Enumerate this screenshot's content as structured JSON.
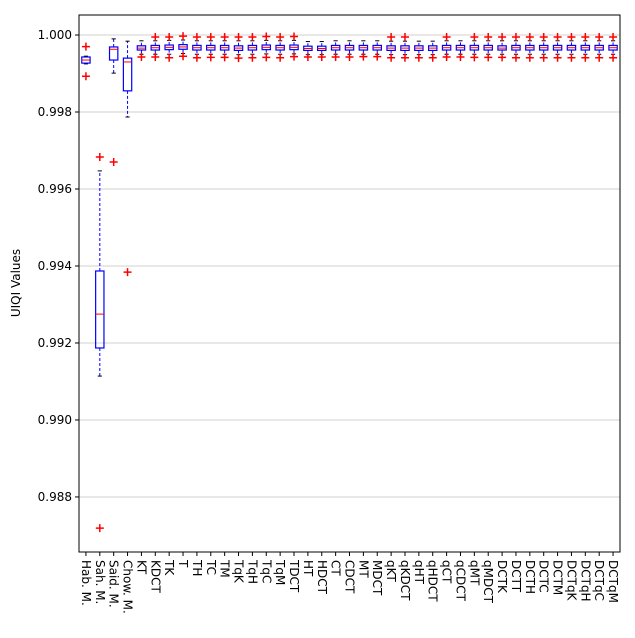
{
  "chart_data": {
    "type": "box",
    "ylabel": "UIQI Values",
    "categories": [
      "Hab. M.",
      "Sah. M.",
      "Said. M.",
      "Chow. M.",
      "KT",
      "KDCT",
      "TK",
      "T",
      "TH",
      "TC",
      "TM",
      "TqK",
      "TqH",
      "TqC",
      "TqM",
      "TDCT",
      "HT",
      "HDCT",
      "CT",
      "CDCT",
      "MT",
      "MDCT",
      "qKT",
      "qKDCT",
      "qHT",
      "qHDCT",
      "qCT",
      "qCDCT",
      "qMT",
      "qMDCT",
      "DCTK",
      "DCTT",
      "DCTH",
      "DCTC",
      "DCTM",
      "DCTqK",
      "DCTqH",
      "DCTqC",
      "DCTqM"
    ],
    "boxes": [
      {
        "whislo": 0.99925,
        "q1": 0.99927,
        "med": 0.99935,
        "q3": 0.99943,
        "whishi": 0.99945,
        "fliers": [
          0.9997,
          0.99893
        ]
      },
      {
        "whislo": 0.99114,
        "q1": 0.99187,
        "med": 0.99275,
        "q3": 0.99387,
        "whishi": 0.99647,
        "fliers": [
          0.99683,
          0.98719
        ]
      },
      {
        "whislo": 0.99901,
        "q1": 0.99935,
        "med": 0.99963,
        "q3": 0.99969,
        "whishi": 0.9999,
        "fliers": [
          0.9967
        ]
      },
      {
        "whislo": 0.99787,
        "q1": 0.99855,
        "med": 0.9993,
        "q3": 0.9994,
        "whishi": 0.99984,
        "fliers": [
          0.99384
        ]
      },
      {
        "whislo": 0.9995,
        "q1": 0.99961,
        "med": 0.99966,
        "q3": 0.99972,
        "whishi": 0.99985,
        "fliers": [
          0.99943
        ]
      },
      {
        "whislo": 0.9995,
        "q1": 0.99961,
        "med": 0.99967,
        "q3": 0.99973,
        "whishi": 0.99985,
        "fliers": [
          0.99995,
          0.99943
        ]
      },
      {
        "whislo": 0.9995,
        "q1": 0.99962,
        "med": 0.99968,
        "q3": 0.99974,
        "whishi": 0.99986,
        "fliers": [
          0.99995,
          0.99941
        ]
      },
      {
        "whislo": 0.99952,
        "q1": 0.99963,
        "med": 0.99969,
        "q3": 0.99975,
        "whishi": 0.99987,
        "fliers": [
          0.99997,
          0.99945
        ]
      },
      {
        "whislo": 0.9995,
        "q1": 0.99961,
        "med": 0.99967,
        "q3": 0.99973,
        "whishi": 0.99985,
        "fliers": [
          0.99995,
          0.99941
        ]
      },
      {
        "whislo": 0.9995,
        "q1": 0.99961,
        "med": 0.99967,
        "q3": 0.99973,
        "whishi": 0.99985,
        "fliers": [
          0.99995,
          0.99942
        ]
      },
      {
        "whislo": 0.9995,
        "q1": 0.99961,
        "med": 0.99967,
        "q3": 0.99973,
        "whishi": 0.99985,
        "fliers": [
          0.99995,
          0.99942
        ]
      },
      {
        "whislo": 0.99949,
        "q1": 0.9996,
        "med": 0.99966,
        "q3": 0.99972,
        "whishi": 0.99985,
        "fliers": [
          0.99995,
          0.9994
        ]
      },
      {
        "whislo": 0.9995,
        "q1": 0.99961,
        "med": 0.99967,
        "q3": 0.99973,
        "whishi": 0.99985,
        "fliers": [
          0.99995,
          0.99941
        ]
      },
      {
        "whislo": 0.99951,
        "q1": 0.99962,
        "med": 0.99968,
        "q3": 0.99974,
        "whishi": 0.99986,
        "fliers": [
          0.99996,
          0.99942
        ]
      },
      {
        "whislo": 0.9995,
        "q1": 0.99961,
        "med": 0.99967,
        "q3": 0.99973,
        "whishi": 0.99985,
        "fliers": [
          0.99995,
          0.99941
        ]
      },
      {
        "whislo": 0.99951,
        "q1": 0.99962,
        "med": 0.99968,
        "q3": 0.99974,
        "whishi": 0.99986,
        "fliers": [
          0.99996,
          0.99944
        ]
      },
      {
        "whislo": 0.99949,
        "q1": 0.9996,
        "med": 0.99965,
        "q3": 0.99971,
        "whishi": 0.99983,
        "fliers": [
          0.99943
        ]
      },
      {
        "whislo": 0.99949,
        "q1": 0.9996,
        "med": 0.99965,
        "q3": 0.99971,
        "whishi": 0.99983,
        "fliers": [
          0.99943
        ]
      },
      {
        "whislo": 0.9995,
        "q1": 0.99961,
        "med": 0.99967,
        "q3": 0.99973,
        "whishi": 0.99985,
        "fliers": [
          0.99943
        ]
      },
      {
        "whislo": 0.9995,
        "q1": 0.99961,
        "med": 0.99967,
        "q3": 0.99973,
        "whishi": 0.99985,
        "fliers": [
          0.99943
        ]
      },
      {
        "whislo": 0.9995,
        "q1": 0.99961,
        "med": 0.99967,
        "q3": 0.99973,
        "whishi": 0.99985,
        "fliers": [
          0.99944
        ]
      },
      {
        "whislo": 0.9995,
        "q1": 0.99961,
        "med": 0.99967,
        "q3": 0.99973,
        "whishi": 0.99985,
        "fliers": [
          0.99944
        ]
      },
      {
        "whislo": 0.99949,
        "q1": 0.9996,
        "med": 0.99966,
        "q3": 0.99972,
        "whishi": 0.99984,
        "fliers": [
          0.99995,
          0.99941
        ]
      },
      {
        "whislo": 0.99949,
        "q1": 0.9996,
        "med": 0.99966,
        "q3": 0.99972,
        "whishi": 0.99984,
        "fliers": [
          0.99995,
          0.99941
        ]
      },
      {
        "whislo": 0.99949,
        "q1": 0.9996,
        "med": 0.99966,
        "q3": 0.99972,
        "whishi": 0.99984,
        "fliers": [
          0.99941
        ]
      },
      {
        "whislo": 0.99949,
        "q1": 0.9996,
        "med": 0.99966,
        "q3": 0.99972,
        "whishi": 0.99984,
        "fliers": [
          0.99941
        ]
      },
      {
        "whislo": 0.9995,
        "q1": 0.99961,
        "med": 0.99967,
        "q3": 0.99973,
        "whishi": 0.99985,
        "fliers": [
          0.99995,
          0.99943
        ]
      },
      {
        "whislo": 0.9995,
        "q1": 0.99961,
        "med": 0.99967,
        "q3": 0.99973,
        "whishi": 0.99985,
        "fliers": [
          0.99943
        ]
      },
      {
        "whislo": 0.9995,
        "q1": 0.99961,
        "med": 0.99967,
        "q3": 0.99973,
        "whishi": 0.99985,
        "fliers": [
          0.99995,
          0.99942
        ]
      },
      {
        "whislo": 0.9995,
        "q1": 0.99961,
        "med": 0.99967,
        "q3": 0.99973,
        "whishi": 0.99985,
        "fliers": [
          0.99995,
          0.99942
        ]
      },
      {
        "whislo": 0.9995,
        "q1": 0.99961,
        "med": 0.99966,
        "q3": 0.99972,
        "whishi": 0.99985,
        "fliers": [
          0.99995,
          0.99942
        ]
      },
      {
        "whislo": 0.9995,
        "q1": 0.99961,
        "med": 0.99967,
        "q3": 0.99973,
        "whishi": 0.99985,
        "fliers": [
          0.99995,
          0.99941
        ]
      },
      {
        "whislo": 0.9995,
        "q1": 0.99961,
        "med": 0.99967,
        "q3": 0.99973,
        "whishi": 0.99985,
        "fliers": [
          0.99995,
          0.99941
        ]
      },
      {
        "whislo": 0.9995,
        "q1": 0.99961,
        "med": 0.99967,
        "q3": 0.99973,
        "whishi": 0.99985,
        "fliers": [
          0.99995,
          0.99941
        ]
      },
      {
        "whislo": 0.9995,
        "q1": 0.99961,
        "med": 0.99967,
        "q3": 0.99973,
        "whishi": 0.99985,
        "fliers": [
          0.99995,
          0.99941
        ]
      },
      {
        "whislo": 0.9995,
        "q1": 0.99961,
        "med": 0.99967,
        "q3": 0.99973,
        "whishi": 0.99985,
        "fliers": [
          0.99995,
          0.99941
        ]
      },
      {
        "whislo": 0.9995,
        "q1": 0.99961,
        "med": 0.99967,
        "q3": 0.99973,
        "whishi": 0.99985,
        "fliers": [
          0.99995,
          0.99941
        ]
      },
      {
        "whislo": 0.9995,
        "q1": 0.99961,
        "med": 0.99967,
        "q3": 0.99973,
        "whishi": 0.99985,
        "fliers": [
          0.99995,
          0.99941
        ]
      },
      {
        "whislo": 0.9995,
        "q1": 0.99961,
        "med": 0.99967,
        "q3": 0.99973,
        "whishi": 0.99985,
        "fliers": [
          0.99995,
          0.99941
        ]
      }
    ],
    "box_color": "#0000ff",
    "median_color": "#ff0000",
    "flier_color": "#ff0000",
    "ylim": [
      0.98657,
      1.00052
    ],
    "yticks": [
      0.988,
      {
        "value": 0.99,
        "label": "0.990"
      },
      0.992,
      0.994,
      0.996,
      0.998,
      {
        "value": 1,
        "label": "1.000"
      }
    ],
    "grid": true
  }
}
